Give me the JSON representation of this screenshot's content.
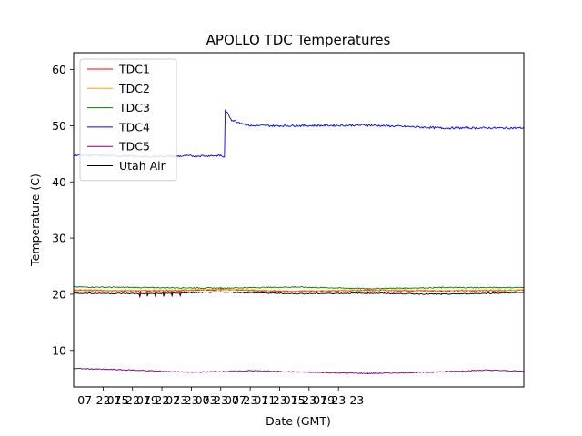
{
  "chart_data": {
    "type": "line",
    "title": "APOLLO TDC Temperatures",
    "xlabel": "Date (GMT)",
    "ylabel": "Temperature (C)",
    "x_unit": "hours since 07-22 11:00 GMT",
    "xlim": [
      0,
      61.2
    ],
    "ylim": [
      3.5,
      63
    ],
    "x_ticks": [
      {
        "value": 4,
        "label": "07-22 15"
      },
      {
        "value": 8,
        "label": "07-22 19"
      },
      {
        "value": 12,
        "label": "07-22 23"
      },
      {
        "value": 16,
        "label": "07-23 03"
      },
      {
        "value": 20,
        "label": "07-23 07"
      },
      {
        "value": 24,
        "label": "07-23 11"
      },
      {
        "value": 28,
        "label": "07-23 15"
      },
      {
        "value": 32,
        "label": "07-23 19"
      },
      {
        "value": 36,
        "label": "07-23 23"
      }
    ],
    "y_ticks": [
      10,
      20,
      30,
      40,
      50,
      60
    ],
    "legend_position": "top-left",
    "series": [
      {
        "name": "TDC1",
        "color": "#ff0000",
        "points": [
          [
            0,
            20.7
          ],
          [
            10,
            20.6
          ],
          [
            20,
            20.8
          ],
          [
            30,
            20.5
          ],
          [
            40,
            20.7
          ],
          [
            50,
            20.6
          ],
          [
            61.2,
            20.7
          ]
        ]
      },
      {
        "name": "TDC2",
        "color": "#ffa500",
        "points": [
          [
            0,
            20.8
          ],
          [
            10,
            20.7
          ],
          [
            20,
            20.9
          ],
          [
            30,
            20.6
          ],
          [
            40,
            20.8
          ],
          [
            50,
            20.7
          ],
          [
            61.2,
            20.8
          ]
        ]
      },
      {
        "name": "TDC3",
        "color": "#008000",
        "points": [
          [
            0,
            21.3
          ],
          [
            10,
            21.2
          ],
          [
            20,
            21.1
          ],
          [
            30,
            21.3
          ],
          [
            40,
            21.0
          ],
          [
            50,
            21.2
          ],
          [
            61.2,
            21.2
          ]
        ]
      },
      {
        "name": "TDC4",
        "color": "#0000ff",
        "points": [
          [
            0,
            44.8
          ],
          [
            10,
            44.5
          ],
          [
            20,
            44.7
          ],
          [
            20.5,
            44.4
          ],
          [
            20.6,
            52.8
          ],
          [
            21.5,
            51.0
          ],
          [
            24,
            50.0
          ],
          [
            30,
            50.0
          ],
          [
            40,
            50.1
          ],
          [
            50,
            49.6
          ],
          [
            61.2,
            49.6
          ]
        ]
      },
      {
        "name": "TDC5",
        "color": "#800080",
        "points": [
          [
            0,
            6.8
          ],
          [
            8,
            6.5
          ],
          [
            16,
            6.1
          ],
          [
            24,
            6.4
          ],
          [
            32,
            6.1
          ],
          [
            40,
            5.9
          ],
          [
            48,
            6.1
          ],
          [
            56,
            6.5
          ],
          [
            61.2,
            6.3
          ]
        ]
      },
      {
        "name": "Utah Air",
        "color": "#000000",
        "points": [
          [
            0,
            20.2
          ],
          [
            10,
            20.1
          ],
          [
            20,
            20.4
          ],
          [
            30,
            20.1
          ],
          [
            40,
            20.2
          ],
          [
            50,
            20.0
          ],
          [
            61.2,
            20.3
          ]
        ]
      }
    ]
  }
}
